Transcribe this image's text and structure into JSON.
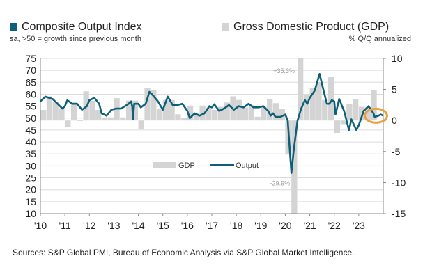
{
  "header": {
    "left_title": "Composite Output Index",
    "left_subtitle": "sa, >50 = growth since previous month",
    "right_title": "Gross Domestic Product (GDP)",
    "right_subtitle": "% Q/Q annualized"
  },
  "source": "Sources: S&P Global PMI, Bureau of Economic Analysis via S&P Global Market Intelligence.",
  "colors": {
    "output": "#0e5f78",
    "gdp": "#d4d4d4",
    "highlight": "#e8a040",
    "grid": "#dcdcdc"
  },
  "chart_data": {
    "type": "bar+line",
    "title": "Composite Output Index vs Gross Domestic Product (GDP)",
    "x_tick_labels": [
      "'10",
      "'11",
      "'12",
      "'13",
      "'14",
      "'15",
      "'16",
      "'17",
      "'18",
      "'19",
      "'20",
      "'21",
      "'22",
      "'23"
    ],
    "x_range": [
      2010.0,
      2024.0
    ],
    "left_axis": {
      "label": "Composite Output Index",
      "range": [
        10,
        75
      ],
      "ticks": [
        75,
        70,
        65,
        60,
        55,
        50,
        45,
        40,
        35,
        30,
        25,
        20,
        15,
        10
      ]
    },
    "right_axis": {
      "label": "GDP % Q/Q annualized",
      "range": [
        -15,
        10
      ],
      "ticks": [
        10,
        5,
        0,
        -5,
        -10,
        -15
      ]
    },
    "legend": [
      {
        "name": "GDP",
        "type": "bar"
      },
      {
        "name": "Output",
        "type": "line"
      }
    ],
    "legend_placement": "center-left",
    "annotations": [
      {
        "text": "+35.3%",
        "x": 2020.5
      },
      {
        "text": "-29.9%",
        "x": 2020.25
      }
    ],
    "gdp": {
      "name": "GDP",
      "quarters": [
        2010.0,
        2010.25,
        2010.5,
        2010.75,
        2011.0,
        2011.25,
        2011.5,
        2011.75,
        2012.0,
        2012.25,
        2012.5,
        2012.75,
        2013.0,
        2013.25,
        2013.5,
        2013.75,
        2014.0,
        2014.25,
        2014.5,
        2014.75,
        2015.0,
        2015.25,
        2015.5,
        2015.75,
        2016.0,
        2016.25,
        2016.5,
        2016.75,
        2017.0,
        2017.25,
        2017.5,
        2017.75,
        2018.0,
        2018.25,
        2018.5,
        2018.75,
        2019.0,
        2019.25,
        2019.5,
        2019.75,
        2020.0,
        2020.25,
        2020.5,
        2020.75,
        2021.0,
        2021.25,
        2021.5,
        2021.75,
        2022.0,
        2022.25,
        2022.5,
        2022.75,
        2023.0,
        2023.25,
        2023.5
      ],
      "values": [
        1.7,
        3.9,
        3.0,
        2.0,
        -1.0,
        2.9,
        -0.1,
        4.7,
        3.2,
        1.7,
        0.5,
        0.5,
        3.6,
        0.5,
        3.2,
        3.2,
        -1.4,
        5.2,
        4.9,
        1.9,
        3.3,
        3.3,
        1.0,
        0.4,
        2.4,
        1.2,
        2.4,
        2.0,
        1.7,
        2.2,
        2.9,
        3.9,
        3.3,
        2.1,
        2.5,
        0.6,
        2.2,
        3.4,
        2.8,
        1.9,
        -5.5,
        -29.9,
        35.3,
        4.2,
        5.2,
        6.2,
        3.3,
        7.0,
        -2.0,
        -0.6,
        2.7,
        3.4,
        2.2,
        2.1,
        4.9
      ]
    },
    "output": {
      "name": "Output",
      "x": [
        2010.0,
        2010.2,
        2010.5,
        2010.7,
        2010.9,
        2011.0,
        2011.1,
        2011.3,
        2011.5,
        2011.7,
        2011.9,
        2012.0,
        2012.2,
        2012.4,
        2012.5,
        2012.7,
        2012.9,
        2013.1,
        2013.3,
        2013.6,
        2013.7,
        2013.75,
        2013.78,
        2013.83,
        2014.0,
        2014.1,
        2014.3,
        2014.45,
        2014.6,
        2014.8,
        2015.0,
        2015.2,
        2015.4,
        2015.6,
        2015.8,
        2016.0,
        2016.1,
        2016.3,
        2016.5,
        2016.7,
        2016.9,
        2017.0,
        2017.1,
        2017.3,
        2017.5,
        2017.7,
        2017.9,
        2018.1,
        2018.3,
        2018.5,
        2018.7,
        2018.9,
        2019.1,
        2019.3,
        2019.4,
        2019.5,
        2019.6,
        2019.8,
        2020.0,
        2020.1,
        2020.25,
        2020.35,
        2020.5,
        2020.65,
        2020.8,
        2020.9,
        2021.0,
        2021.2,
        2021.4,
        2021.6,
        2021.7,
        2021.8,
        2021.9,
        2022.0,
        2022.05,
        2022.2,
        2022.4,
        2022.6,
        2022.7,
        2022.9,
        2023.0,
        2023.2,
        2023.4,
        2023.6,
        2023.65,
        2023.8,
        2023.9,
        2024.0
      ],
      "values": [
        57,
        59,
        58,
        56,
        54,
        55,
        57.5,
        56,
        56,
        53.5,
        55,
        57.5,
        58.5,
        56,
        52,
        51,
        53.5,
        54,
        54,
        56,
        57,
        55,
        49.5,
        56,
        56,
        54.5,
        56,
        61,
        59.5,
        57,
        53.5,
        59,
        55.5,
        55.5,
        56,
        53,
        50,
        52,
        51,
        52,
        55,
        54.5,
        55.8,
        53,
        54,
        55.5,
        53.5,
        55,
        54.5,
        56,
        54.5,
        54.5,
        55,
        53,
        51,
        52,
        50.5,
        50.5,
        51.5,
        49,
        27,
        37,
        49,
        54,
        57.5,
        56,
        58.5,
        61.5,
        68.5,
        60,
        56,
        56,
        57.5,
        57,
        51.5,
        58,
        53,
        45,
        49.5,
        45,
        47,
        53,
        55,
        52,
        50.5,
        51,
        51.5,
        51
      ]
    }
  }
}
